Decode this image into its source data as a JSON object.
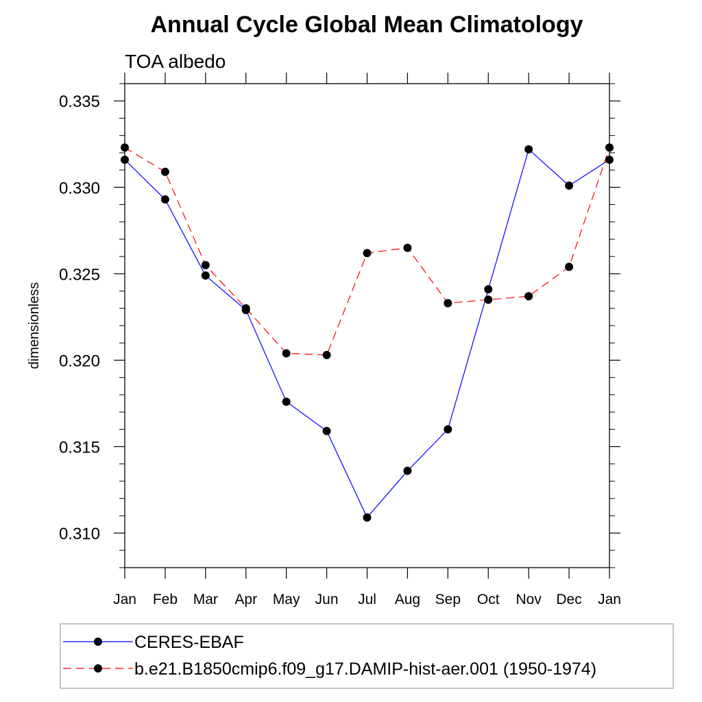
{
  "chart_data": {
    "type": "line",
    "title": "Annual Cycle Global Mean Climatology",
    "subtitle": "TOA albedo",
    "xlabel": "",
    "ylabel": "dimensionless",
    "categories": [
      "Jan",
      "Feb",
      "Mar",
      "Apr",
      "May",
      "Jun",
      "Jul",
      "Aug",
      "Sep",
      "Oct",
      "Nov",
      "Dec",
      "Jan"
    ],
    "ylim": [
      0.308,
      0.336
    ],
    "yticks": [
      0.31,
      0.315,
      0.32,
      0.325,
      0.33,
      0.335
    ],
    "ytick_labels": [
      "0.310",
      "0.315",
      "0.320",
      "0.325",
      "0.330",
      "0.335"
    ],
    "grid": false,
    "legend_position": "bottom",
    "series": [
      {
        "name": "CERES-EBAF",
        "color": "#0000ff",
        "dash": "solid",
        "values": [
          0.3316,
          0.3293,
          0.3249,
          0.3229,
          0.3176,
          0.3159,
          0.3109,
          0.3136,
          0.316,
          0.3241,
          0.3322,
          0.3301,
          0.3316
        ]
      },
      {
        "name": "b.e21.B1850cmip6.f09_g17.DAMIP-hist-aer.001 (1950-1974)",
        "color": "#ff0000",
        "dash": "dashed",
        "values": [
          0.3323,
          0.3309,
          0.3255,
          0.323,
          0.3204,
          0.3203,
          0.3262,
          0.3265,
          0.3233,
          0.3235,
          0.3237,
          0.3254,
          0.3323
        ]
      }
    ]
  }
}
